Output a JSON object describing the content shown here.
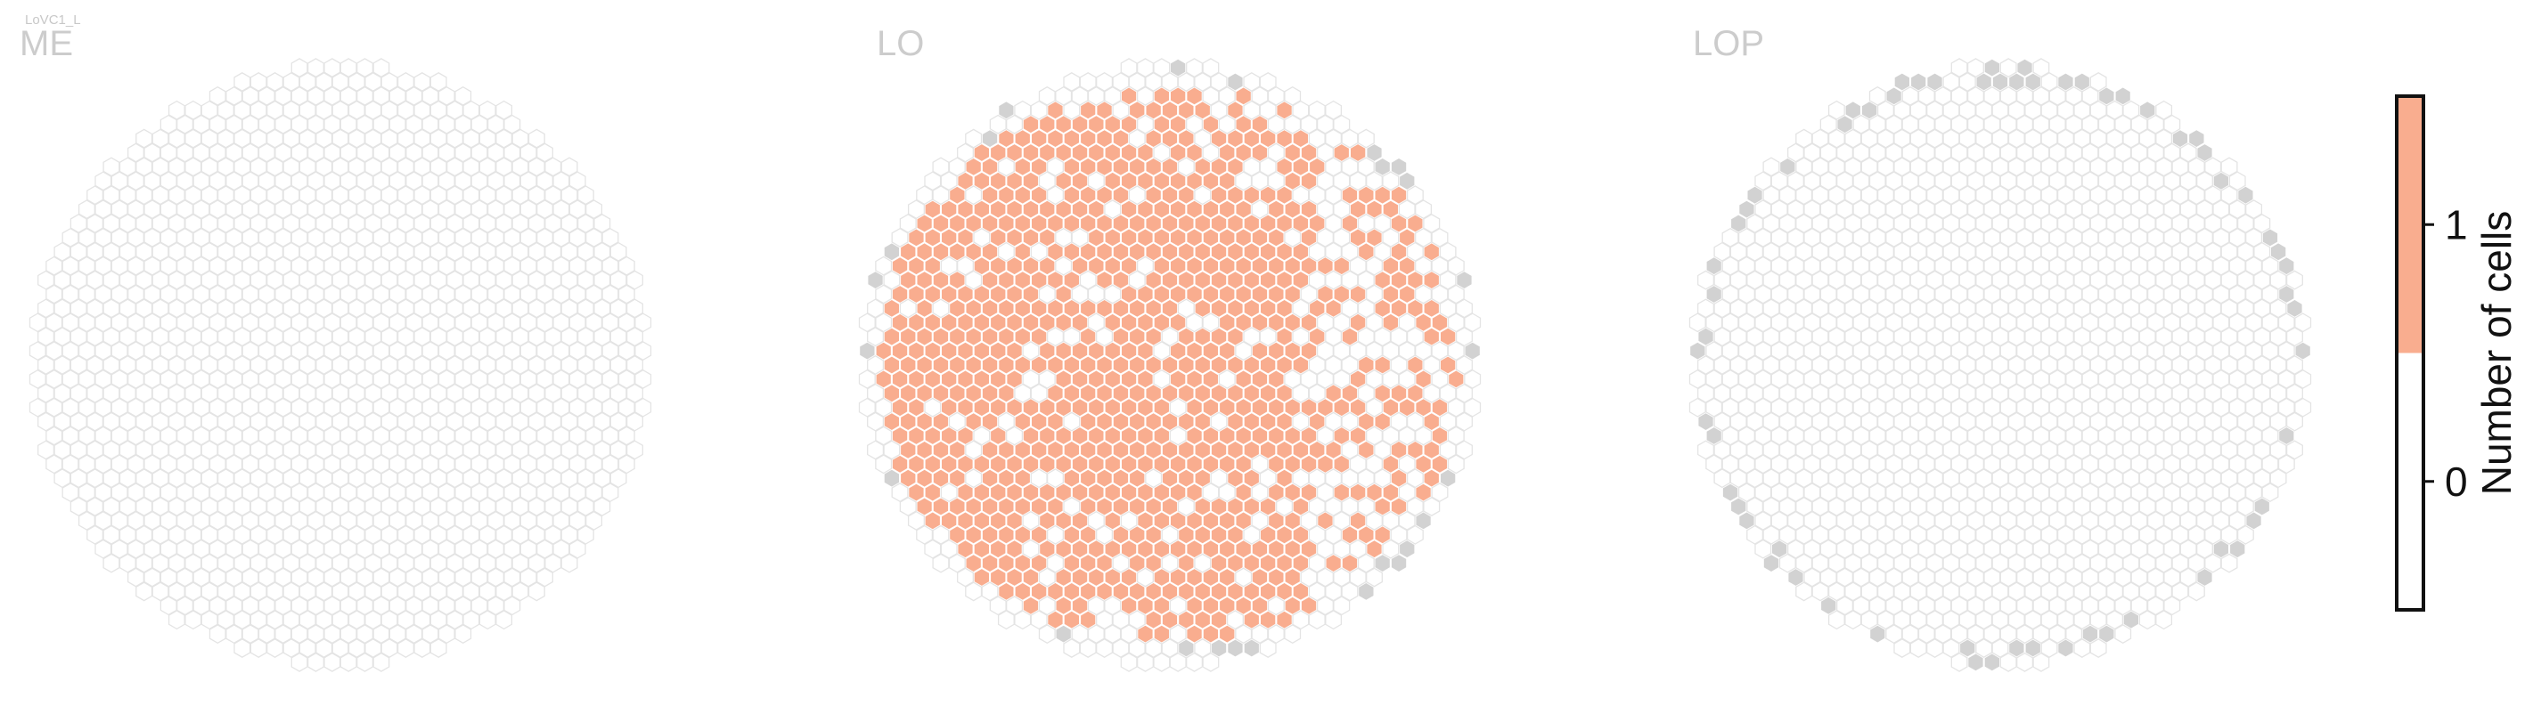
{
  "chart_data": {
    "type": "heatmap",
    "title": "LoVC1_L",
    "colors": {
      "empty_stroke": "#e4e4e4",
      "empty_fill": "#ffffff",
      "covered": "#f9ad8f",
      "boundary": "#d2d2d2",
      "colorbar_low": "#ffffff",
      "colorbar_high": "#f9ad8f"
    },
    "panels": [
      {
        "region": "ME",
        "covered_fraction": 0.0
      },
      {
        "region": "LO",
        "covered_fraction": 0.62
      },
      {
        "region": "LOP",
        "covered_fraction": 0.0
      }
    ],
    "colorbar": {
      "label": "Number of cells",
      "ticks": [
        "1",
        "0"
      ],
      "range": [
        -0.5,
        1.5
      ],
      "threshold": 0.5
    }
  }
}
